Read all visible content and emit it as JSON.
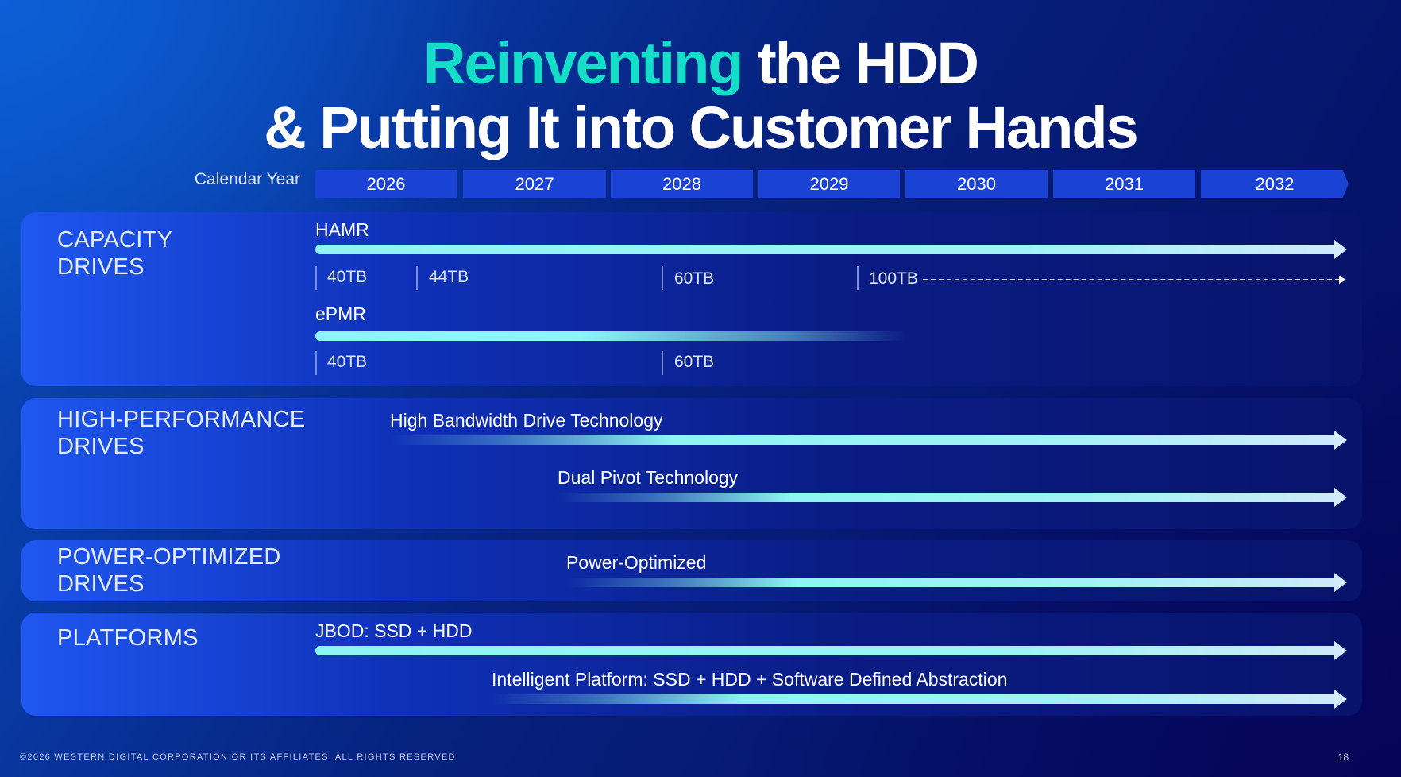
{
  "title": {
    "accent": "Reinventing",
    "line1_rest": " the HDD",
    "line2": "& Putting It into Customer Hands"
  },
  "calendar": {
    "label": "Calendar Year",
    "years": [
      "2026",
      "2027",
      "2028",
      "2029",
      "2030",
      "2031",
      "2032"
    ]
  },
  "capacity": {
    "label_line1": "CAPACITY",
    "label_line2": "DRIVES",
    "hamr": {
      "name": "HAMR",
      "capacities": [
        "40TB",
        "44TB",
        "60TB",
        "100TB"
      ]
    },
    "epmr": {
      "name": "ePMR",
      "capacities": [
        "40TB",
        "60TB"
      ]
    }
  },
  "high_performance": {
    "label_line1": "HIGH-PERFORMANCE",
    "label_line2": "DRIVES",
    "lanes": [
      "High Bandwidth Drive Technology",
      "Dual Pivot Technology"
    ]
  },
  "power_optimized": {
    "label_line1": "POWER-OPTIMIZED",
    "label_line2": "DRIVES",
    "lanes": [
      "Power-Optimized"
    ]
  },
  "platforms": {
    "label": "PLATFORMS",
    "lanes": [
      "JBOD: SSD + HDD",
      "Intelligent Platform: SSD + HDD + Software Defined Abstraction"
    ]
  },
  "footer": {
    "copyright": "©2026 WESTERN DIGITAL CORPORATION OR ITS AFFILIATES. ALL RIGHTS RESERVED.",
    "page": "18"
  },
  "colors": {
    "accent": "#14dec7",
    "bar": "#8ff4f4",
    "year_bar": "#1a43d6"
  }
}
